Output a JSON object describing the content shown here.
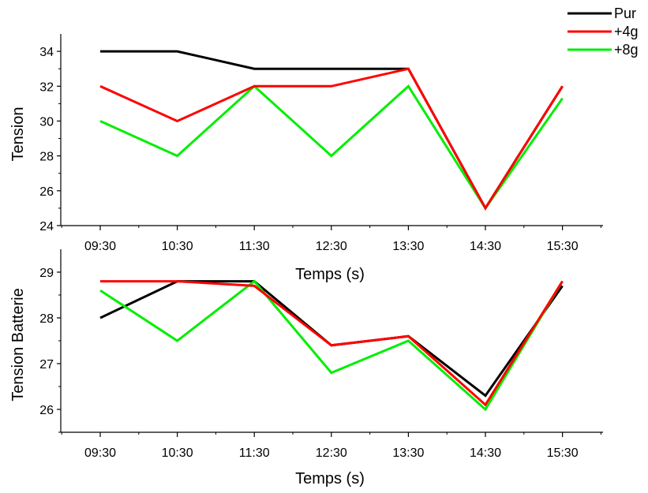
{
  "legend": {
    "entries": [
      {
        "name": "Pur",
        "color": "#000000"
      },
      {
        "name": "+4g",
        "color": "#ff0000"
      },
      {
        "name": "+8g",
        "color": "#00ee00"
      }
    ]
  },
  "chart_data": [
    {
      "type": "line",
      "categories": [
        "09:30",
        "10:30",
        "11:30",
        "12:30",
        "13:30",
        "14:30",
        "15:30"
      ],
      "xlabel": "Temps (s)",
      "ylabel": "Tension",
      "ylim": [
        24,
        35
      ],
      "yticks": [
        "24",
        "26",
        "28",
        "30",
        "32",
        "34"
      ],
      "grid": false,
      "series": [
        {
          "name": "Pur",
          "color": "#000000",
          "values": [
            34,
            34,
            33,
            33,
            33,
            25,
            32
          ]
        },
        {
          "name": "+4g",
          "color": "#ff0000",
          "values": [
            32,
            30,
            32,
            32,
            33,
            25,
            32
          ]
        },
        {
          "name": "+8g",
          "color": "#00ee00",
          "values": [
            30,
            28,
            32,
            28,
            32,
            25,
            31.3
          ]
        }
      ]
    },
    {
      "type": "line",
      "categories": [
        "09:30",
        "10:30",
        "11:30",
        "12:30",
        "13:30",
        "14:30",
        "15:30"
      ],
      "xlabel": "Temps (s)",
      "ylabel": "Tension  Batterie",
      "ylim": [
        25.5,
        29.5
      ],
      "yticks": [
        "26",
        "27",
        "28",
        "29"
      ],
      "grid": false,
      "series": [
        {
          "name": "Pur",
          "color": "#000000",
          "values": [
            28.0,
            28.8,
            28.8,
            27.4,
            27.6,
            26.3,
            28.7
          ]
        },
        {
          "name": "+4g",
          "color": "#ff0000",
          "values": [
            28.8,
            28.8,
            28.7,
            27.4,
            27.6,
            26.1,
            28.8
          ]
        },
        {
          "name": "+8g",
          "color": "#00ee00",
          "values": [
            28.6,
            27.5,
            28.8,
            26.8,
            27.5,
            26.0,
            28.8
          ]
        }
      ]
    }
  ]
}
